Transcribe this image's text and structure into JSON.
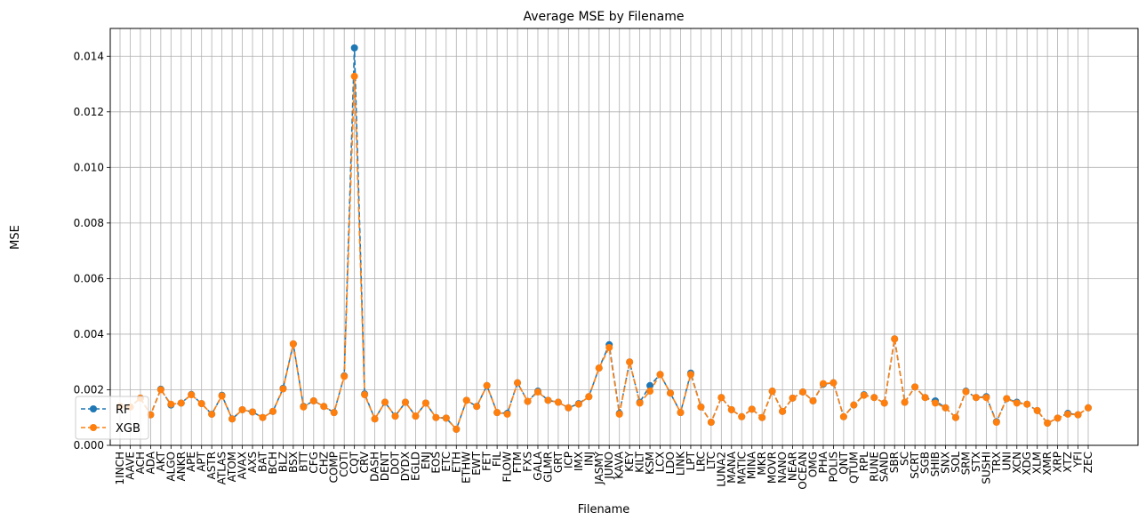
{
  "chart_data": {
    "type": "line",
    "title": "Average MSE by Filename",
    "xlabel": "Filename",
    "ylabel": "MSE",
    "ylim": [
      0,
      0.015
    ],
    "yticks": [
      "0.000",
      "0.002",
      "0.004",
      "0.006",
      "0.008",
      "0.010",
      "0.012",
      "0.014"
    ],
    "grid": true,
    "legend_position": "lower-left",
    "categories": [
      "1INCH",
      "AAVE",
      "ACH",
      "ADA",
      "AKT",
      "ALGO",
      "ANKR",
      "APE",
      "APT",
      "ASTR",
      "ATLAS",
      "ATOM",
      "AVAX",
      "AXS",
      "BAT",
      "BCH",
      "BLZ",
      "BSX",
      "BTT",
      "CFG",
      "CHZ",
      "COMP",
      "COTI",
      "CQT",
      "CRV",
      "DASH",
      "DENT",
      "DOT",
      "DYDX",
      "EGLD",
      "ENJ",
      "EOS",
      "ETC",
      "ETH",
      "ETHW",
      "EWT",
      "FET",
      "FIL",
      "FLOW",
      "FTM",
      "FXS",
      "GALA",
      "GLMR",
      "GRT",
      "ICP",
      "IMX",
      "INJ",
      "JASMY",
      "JUNO",
      "KAVA",
      "KEY",
      "KILT",
      "KSM",
      "LCX",
      "LDO",
      "LINK",
      "LPT",
      "LRC",
      "LTC",
      "LUNA2",
      "MANA",
      "MATIC",
      "MINA",
      "MKR",
      "MOVR",
      "NANO",
      "NEAR",
      "OCEAN",
      "OMG",
      "PHA",
      "POLIS",
      "QNT",
      "QTUM",
      "RPL",
      "RUNE",
      "SAND",
      "SBR",
      "SC",
      "SCRT",
      "SGB",
      "SHIB",
      "SNX",
      "SOL",
      "SRM",
      "STX",
      "SUSHI",
      "TRX",
      "UNI",
      "XCN",
      "XDG",
      "XLM",
      "XMR",
      "XRP",
      "XTZ",
      "YFI",
      "ZEC"
    ],
    "series": [
      {
        "name": "RF",
        "color": "#1f77b4",
        "values": [
          0.0014,
          0.00138,
          0.0017,
          0.0011,
          0.00202,
          0.00145,
          0.00152,
          0.00183,
          0.0015,
          0.00112,
          0.0018,
          0.00095,
          0.00128,
          0.0012,
          0.001,
          0.00122,
          0.00205,
          0.00365,
          0.0014,
          0.0016,
          0.0014,
          0.00118,
          0.0025,
          0.0143,
          0.00185,
          0.00095,
          0.00155,
          0.00105,
          0.00155,
          0.00105,
          0.00152,
          0.001,
          0.00098,
          0.00058,
          0.00162,
          0.0014,
          0.00215,
          0.00118,
          0.00115,
          0.00225,
          0.00158,
          0.00195,
          0.00162,
          0.00155,
          0.00135,
          0.0015,
          0.00175,
          0.00278,
          0.00362,
          0.00115,
          0.003,
          0.00155,
          0.00215,
          0.00255,
          0.00188,
          0.00118,
          0.0026,
          0.00138,
          0.00083,
          0.00172,
          0.00128,
          0.00103,
          0.0013,
          0.001,
          0.00195,
          0.00122,
          0.0017,
          0.00192,
          0.0016,
          0.0022,
          0.00225,
          0.00103,
          0.00145,
          0.00182,
          0.00172,
          0.00152,
          0.00383,
          0.00155,
          0.0021,
          0.00172,
          0.0016,
          0.00135,
          0.001,
          0.00195,
          0.00172,
          0.00175,
          0.00085,
          0.00168,
          0.00155,
          0.00148,
          0.00125,
          0.0008,
          0.00098,
          0.00115,
          0.0011,
          0.00135
        ]
      },
      {
        "name": "XGB",
        "color": "#ff7f0e",
        "values": [
          0.0014,
          0.00138,
          0.0017,
          0.0011,
          0.002,
          0.00148,
          0.00152,
          0.00182,
          0.0015,
          0.00112,
          0.00178,
          0.00095,
          0.00128,
          0.0012,
          0.001,
          0.00122,
          0.00203,
          0.00365,
          0.00138,
          0.0016,
          0.0014,
          0.00118,
          0.00248,
          0.01328,
          0.00182,
          0.00095,
          0.00155,
          0.00105,
          0.00155,
          0.00105,
          0.00152,
          0.001,
          0.00098,
          0.00058,
          0.00162,
          0.0014,
          0.00215,
          0.00118,
          0.00112,
          0.00225,
          0.00158,
          0.00192,
          0.00162,
          0.00155,
          0.00135,
          0.00148,
          0.00175,
          0.00278,
          0.00352,
          0.00112,
          0.003,
          0.00152,
          0.00195,
          0.00255,
          0.00188,
          0.00118,
          0.00255,
          0.00138,
          0.00083,
          0.00172,
          0.00128,
          0.00103,
          0.0013,
          0.001,
          0.00195,
          0.00122,
          0.0017,
          0.00192,
          0.0016,
          0.00222,
          0.00225,
          0.00103,
          0.00145,
          0.0018,
          0.00172,
          0.00152,
          0.00383,
          0.00155,
          0.0021,
          0.00172,
          0.00152,
          0.00135,
          0.001,
          0.00193,
          0.00172,
          0.00172,
          0.00083,
          0.00168,
          0.00152,
          0.00148,
          0.00125,
          0.0008,
          0.00098,
          0.00112,
          0.0011,
          0.00135
        ]
      }
    ]
  }
}
